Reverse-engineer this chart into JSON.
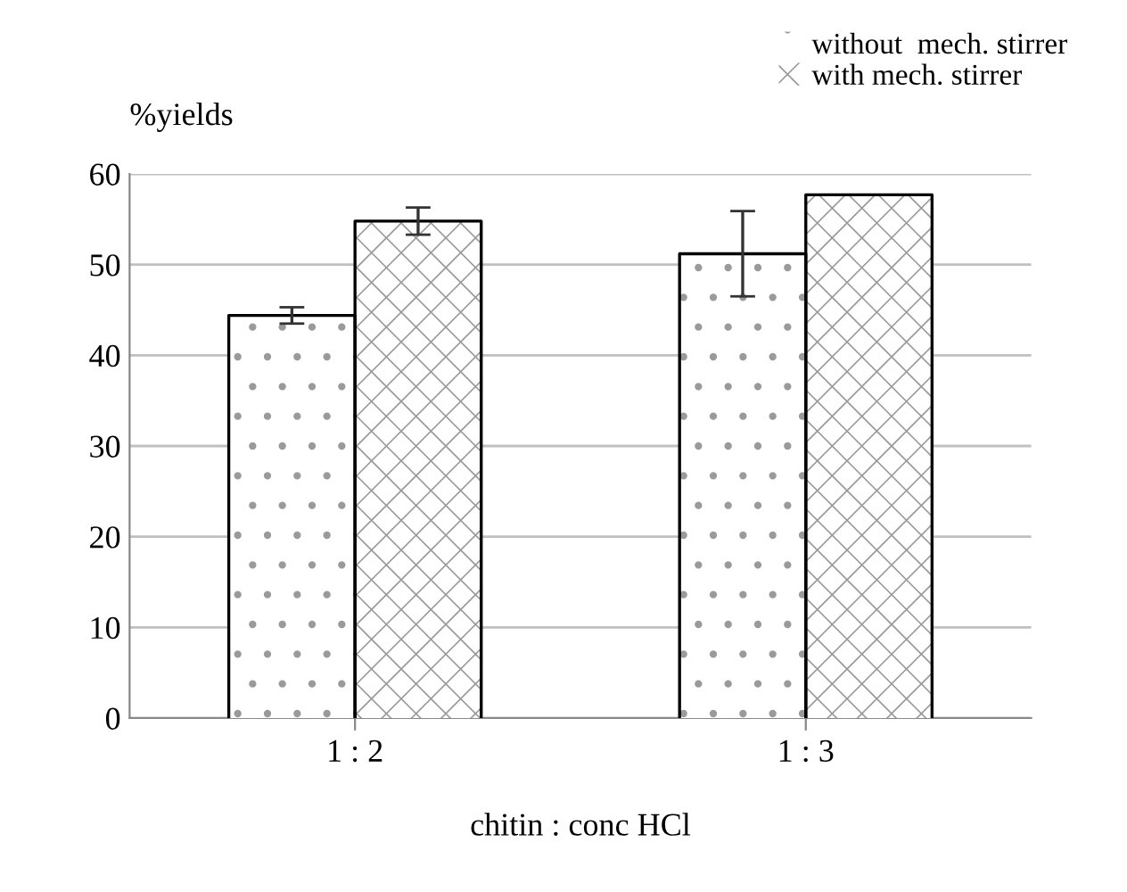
{
  "chart_data": {
    "type": "bar",
    "ylabel": "%yields",
    "xlabel": "chitin : conc HCl",
    "categories": [
      "1 : 2",
      "1 : 3"
    ],
    "series": [
      {
        "name": "without  mech. stirrer",
        "color": "#ffffff",
        "values": [
          44.4,
          51.2
        ],
        "errors": [
          0.9,
          4.7
        ]
      },
      {
        "name": "with mech. stirrer",
        "color": "#ffffff",
        "values": [
          54.8,
          57.7
        ],
        "errors": [
          1.5,
          null
        ]
      }
    ],
    "ylim": [
      0,
      60
    ],
    "yticks": [
      0,
      10,
      20,
      30,
      40,
      50,
      60
    ],
    "grid": "y",
    "legend": "top right"
  }
}
